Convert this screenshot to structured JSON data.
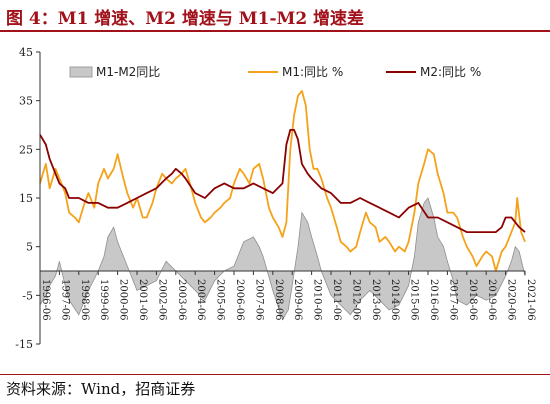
{
  "title": "图 4：M1 增速、M2 增速与 M1-M2 增速差",
  "source": "资料来源：Wind，招商证券",
  "colors": {
    "title": "#a1121b",
    "m1": "#f5a21a",
    "m2": "#8b0000",
    "diff_fill": "#c8c8c8",
    "diff_stroke": "#8f8f8f"
  },
  "chart_data": {
    "type": "line",
    "ylim": [
      -15,
      45
    ],
    "yticks": [
      "45",
      "35",
      "25",
      "15",
      "5",
      "-5",
      "-15"
    ],
    "ytick_values": [
      45,
      35,
      25,
      15,
      5,
      -5,
      -15
    ],
    "grid": false,
    "legend_placement": "top",
    "x_start": 1996.5,
    "x_end": 2021.5,
    "xticks": [
      "1996-06",
      "1997-06",
      "1998-06",
      "1999-06",
      "2000-06",
      "2001-06",
      "2002-06",
      "2003-06",
      "2004-06",
      "2005-06",
      "2006-06",
      "2007-06",
      "2008-06",
      "2009-06",
      "2010-06",
      "2011-06",
      "2012-06",
      "2013-06",
      "2014-06",
      "2015-06",
      "2016-06",
      "2017-06",
      "2018-06",
      "2019-06",
      "2020-06",
      "2021-06"
    ],
    "series": [
      {
        "name": "M1-M2同比",
        "kind": "area",
        "x": [
          1996.5,
          1996.8,
          1997.0,
          1997.3,
          1997.5,
          1997.8,
          1998.0,
          1998.5,
          1999.0,
          1999.5,
          1999.8,
          2000.0,
          2000.3,
          2000.5,
          2000.8,
          2001.0,
          2001.3,
          2001.5,
          2002.0,
          2002.5,
          2003.0,
          2003.5,
          2004.0,
          2004.5,
          2005.0,
          2005.5,
          2006.0,
          2006.5,
          2007.0,
          2007.5,
          2007.8,
          2008.0,
          2008.5,
          2009.0,
          2009.3,
          2009.5,
          2009.8,
          2010.0,
          2010.3,
          2010.5,
          2010.8,
          2011.0,
          2011.5,
          2012.0,
          2012.5,
          2013.0,
          2013.5,
          2014.0,
          2014.5,
          2015.0,
          2015.5,
          2015.8,
          2016.0,
          2016.3,
          2016.5,
          2016.8,
          2017.0,
          2017.3,
          2017.5,
          2017.8,
          2018.0,
          2018.5,
          2019.0,
          2019.5,
          2020.0,
          2020.5,
          2020.8,
          2021.0,
          2021.2,
          2021.5
        ],
        "values": [
          -7,
          -5,
          -3,
          -1,
          2,
          -3,
          -6,
          -9,
          -4,
          0,
          3,
          7,
          9,
          6,
          3,
          1,
          -2,
          -4,
          -3,
          -2,
          2,
          0,
          -2,
          -4,
          -6,
          -2,
          0,
          1,
          6,
          7,
          5,
          3,
          -4,
          -10,
          -8,
          -3,
          5,
          12,
          10,
          7,
          3,
          0,
          -5,
          -7,
          -9,
          -6,
          -4,
          -6,
          -8,
          -7,
          -3,
          3,
          10,
          14,
          15,
          11,
          7,
          5,
          2,
          -2,
          -6,
          -7,
          -5,
          -6,
          -5,
          -1,
          2,
          5,
          4,
          -1
        ]
      },
      {
        "name": "M1:同比 %",
        "kind": "line",
        "x": [
          1996.5,
          1996.8,
          1997.0,
          1997.3,
          1997.5,
          1997.8,
          1998.0,
          1998.3,
          1998.5,
          1998.8,
          1999.0,
          1999.3,
          1999.5,
          1999.8,
          2000.0,
          2000.3,
          2000.5,
          2000.8,
          2001.0,
          2001.3,
          2001.5,
          2001.8,
          2002.0,
          2002.3,
          2002.5,
          2002.8,
          2003.0,
          2003.3,
          2003.5,
          2003.8,
          2004.0,
          2004.3,
          2004.5,
          2004.8,
          2005.0,
          2005.3,
          2005.5,
          2005.8,
          2006.0,
          2006.3,
          2006.5,
          2006.8,
          2007.0,
          2007.3,
          2007.5,
          2007.8,
          2008.0,
          2008.3,
          2008.5,
          2008.8,
          2009.0,
          2009.2,
          2009.4,
          2009.6,
          2009.8,
          2010.0,
          2010.2,
          2010.4,
          2010.6,
          2010.8,
          2011.0,
          2011.3,
          2011.5,
          2011.8,
          2012.0,
          2012.3,
          2012.5,
          2012.8,
          2013.0,
          2013.3,
          2013.5,
          2013.8,
          2014.0,
          2014.3,
          2014.5,
          2014.8,
          2015.0,
          2015.3,
          2015.5,
          2015.8,
          2016.0,
          2016.3,
          2016.5,
          2016.8,
          2017.0,
          2017.3,
          2017.5,
          2017.8,
          2018.0,
          2018.3,
          2018.5,
          2018.8,
          2019.0,
          2019.3,
          2019.5,
          2019.8,
          2020.0,
          2020.3,
          2020.5,
          2020.8,
          2021.0,
          2021.1,
          2021.3,
          2021.5
        ],
        "values": [
          18,
          22,
          17,
          21,
          19,
          16,
          12,
          11,
          10,
          14,
          16,
          13,
          18,
          21,
          19,
          21,
          24,
          19,
          16,
          13,
          15,
          11,
          11,
          14,
          17,
          20,
          19,
          18,
          19,
          20,
          21,
          17,
          14,
          11,
          10,
          11,
          12,
          13,
          14,
          15,
          18,
          21,
          20,
          18,
          21,
          22,
          19,
          13,
          11,
          9,
          7,
          10,
          25,
          32,
          36,
          37,
          34,
          25,
          21,
          21,
          19,
          15,
          13,
          9,
          6,
          5,
          4,
          5,
          8,
          12,
          10,
          9,
          6,
          7,
          6,
          4,
          5,
          4,
          6,
          12,
          18,
          22,
          25,
          24,
          20,
          16,
          12,
          12,
          11,
          7,
          5,
          3,
          1,
          3,
          4,
          3,
          0,
          4,
          5,
          8,
          10,
          15,
          8,
          6
        ]
      },
      {
        "name": "M2:同比 %",
        "kind": "line",
        "x": [
          1996.5,
          1996.8,
          1997.0,
          1997.3,
          1997.5,
          1997.8,
          1998.0,
          1998.5,
          1999.0,
          1999.5,
          2000.0,
          2000.5,
          2001.0,
          2001.5,
          2002.0,
          2002.5,
          2003.0,
          2003.3,
          2003.5,
          2003.8,
          2004.0,
          2004.5,
          2005.0,
          2005.5,
          2006.0,
          2006.5,
          2007.0,
          2007.5,
          2008.0,
          2008.5,
          2009.0,
          2009.2,
          2009.4,
          2009.6,
          2009.8,
          2010.0,
          2010.3,
          2010.5,
          2011.0,
          2011.5,
          2012.0,
          2012.5,
          2013.0,
          2013.5,
          2014.0,
          2014.5,
          2015.0,
          2015.5,
          2016.0,
          2016.5,
          2017.0,
          2017.5,
          2018.0,
          2018.5,
          2019.0,
          2019.5,
          2020.0,
          2020.3,
          2020.5,
          2020.8,
          2021.0,
          2021.2,
          2021.5
        ],
        "values": [
          28,
          26,
          23,
          20,
          18,
          17,
          15,
          15,
          14,
          14,
          13,
          13,
          14,
          15,
          16,
          17,
          19,
          20,
          21,
          20,
          19,
          16,
          15,
          17,
          18,
          17,
          17,
          18,
          17,
          16,
          18,
          26,
          29,
          29,
          27,
          22,
          20,
          19,
          17,
          16,
          14,
          14,
          15,
          14,
          13,
          12,
          11,
          13,
          14,
          11,
          11,
          10,
          9,
          8,
          8,
          8,
          8,
          9,
          11,
          11,
          10,
          9,
          8
        ]
      }
    ]
  }
}
